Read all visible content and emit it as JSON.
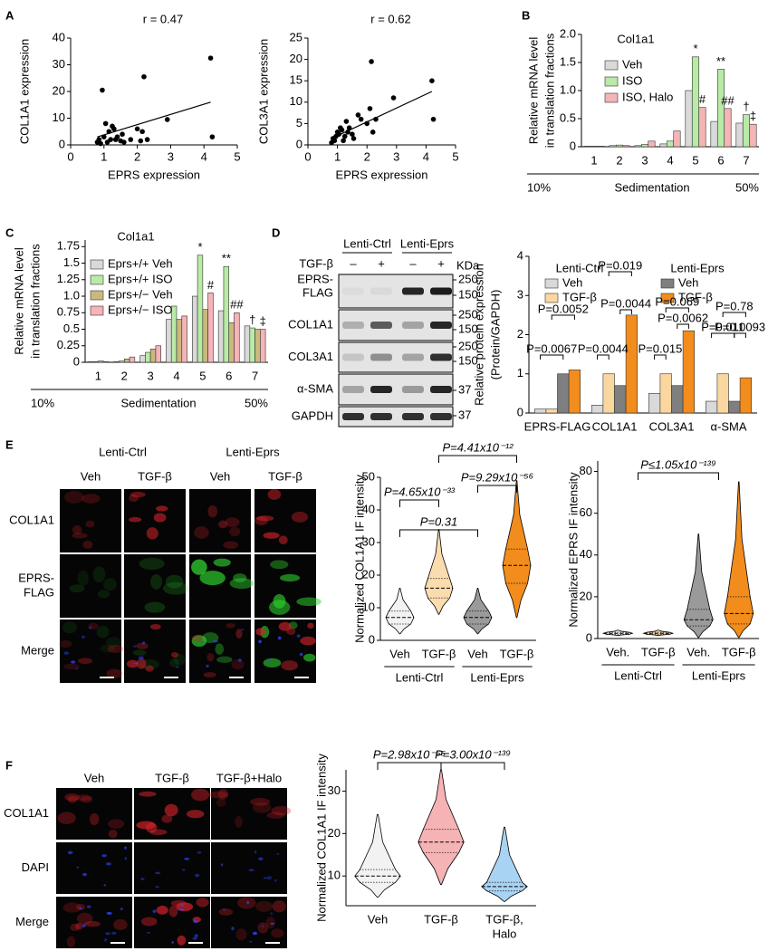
{
  "panel_labels": [
    "A",
    "B",
    "C",
    "D",
    "E",
    "F"
  ],
  "chart_data": [
    {
      "type": "scatter",
      "title": "r = 0.47",
      "xlabel": "EPRS expression",
      "ylabel": "COL1A1 expression",
      "x": [
        0.8,
        0.85,
        0.9,
        0.95,
        1.0,
        1.05,
        1.1,
        1.15,
        1.2,
        1.25,
        1.3,
        1.35,
        1.4,
        1.5,
        1.55,
        1.6,
        1.8,
        2.0,
        2.1,
        2.15,
        2.2,
        2.3,
        2.9,
        4.2,
        4.25
      ],
      "y": [
        1,
        2,
        0.5,
        20.5,
        3,
        8,
        1,
        5,
        2,
        7,
        6,
        2,
        3,
        1.5,
        4,
        1,
        2,
        6,
        1.5,
        5,
        25.5,
        2,
        9.5,
        32.5,
        3
      ],
      "trendline": {
        "x": [
          0.8,
          4.2
        ],
        "y": [
          3,
          16
        ]
      },
      "xlim": [
        0,
        5
      ],
      "ylim": [
        0,
        40
      ],
      "xticks": [
        0,
        1,
        2,
        3,
        4,
        5
      ],
      "yticks": [
        0,
        10,
        20,
        30,
        40
      ],
      "color": "#000000"
    },
    {
      "type": "scatter",
      "title": "r = 0.62",
      "xlabel": "EPRS expression",
      "ylabel": "COL3A1 expression",
      "x": [
        0.8,
        0.85,
        0.9,
        0.95,
        1.0,
        1.05,
        1.1,
        1.15,
        1.2,
        1.25,
        1.3,
        1.35,
        1.4,
        1.5,
        1.55,
        1.7,
        1.8,
        2.0,
        2.1,
        2.15,
        2.2,
        2.3,
        2.9,
        4.2,
        4.25
      ],
      "y": [
        0.5,
        1.5,
        1,
        2,
        3,
        2.5,
        4,
        3.5,
        1,
        2,
        5.5,
        3,
        4,
        2.5,
        1.5,
        7,
        6,
        5,
        8.5,
        19.5,
        3,
        6,
        11,
        15,
        6
      ],
      "trendline": {
        "x": [
          0.8,
          4.2
        ],
        "y": [
          1.5,
          12.5
        ]
      },
      "xlim": [
        0,
        5
      ],
      "ylim": [
        0,
        25
      ],
      "xticks": [
        0,
        1,
        2,
        3,
        4,
        5
      ],
      "yticks": [
        0,
        5,
        10,
        15,
        20,
        25
      ],
      "color": "#000000"
    },
    {
      "type": "bar",
      "title": "Col1a1",
      "ylabel": [
        "Relative mRNA level",
        "in translation fractions"
      ],
      "xlabel": "Sedimentation",
      "x_range_labels": [
        "10%",
        "50%"
      ],
      "categories": [
        "1",
        "2",
        "3",
        "4",
        "5",
        "6",
        "7"
      ],
      "series": [
        {
          "name": "Veh",
          "color": "#d9d9d9",
          "values": [
            0.01,
            0.02,
            0.02,
            0.05,
            1.0,
            0.45,
            0.42
          ]
        },
        {
          "name": "ISO",
          "color": "#b9eaa6",
          "values": [
            0.01,
            0.03,
            0.04,
            0.1,
            1.6,
            1.38,
            0.57
          ]
        },
        {
          "name": "ISO, Halo",
          "color": "#f5b4b6",
          "values": [
            0.01,
            0.02,
            0.1,
            0.28,
            0.7,
            0.68,
            0.4
          ]
        }
      ],
      "annotations": [
        "*",
        "#",
        "**",
        "##",
        "†",
        "‡"
      ],
      "ylim": [
        0,
        2
      ],
      "yticks": [
        0,
        0.5,
        {
          "value": 1,
          "label": "1.0"
        },
        1.5,
        {
          "value": 2,
          "label": "2.0"
        }
      ]
    },
    {
      "type": "bar",
      "title": "Col1a1",
      "ylabel": [
        "Relative mRNA level",
        "in translation fractions"
      ],
      "xlabel": "Sedimentation",
      "x_range_labels": [
        "10%",
        "50%"
      ],
      "categories": [
        "1",
        "2",
        "3",
        "4",
        "5",
        "6",
        "7"
      ],
      "series": [
        {
          "name": "Eprs+/+ Veh",
          "color": "#d9d9d9",
          "values": [
            0.01,
            0.01,
            0.1,
            0.65,
            1.0,
            0.78,
            0.55
          ]
        },
        {
          "name": "Eprs+/+ ISO",
          "color": "#b9eaa6",
          "values": [
            0.01,
            0.02,
            0.15,
            0.85,
            1.62,
            1.45,
            0.52
          ]
        },
        {
          "name": "Eprs+/− Veh",
          "color": "#cbb97c",
          "values": [
            0.02,
            0.05,
            0.2,
            0.65,
            0.8,
            0.6,
            0.5
          ]
        },
        {
          "name": "Eprs+/− ISO",
          "color": "#f5b4b6",
          "values": [
            0.01,
            0.08,
            0.25,
            0.7,
            1.05,
            0.75,
            0.5
          ]
        }
      ],
      "annotations": [
        "*",
        "#",
        "**",
        "##",
        "†",
        "‡"
      ],
      "ylim": [
        0,
        1.85
      ],
      "yticks": [
        0,
        0.25,
        0.5,
        0.75,
        {
          "value": 1,
          "label": "1.0"
        },
        1.25,
        1.5,
        1.75
      ]
    },
    {
      "type": "bar",
      "ylabel": [
        "Relative protein expression",
        "(Protein/GAPDH)"
      ],
      "legend_groups": [
        "Lenti-Ctrl",
        "Lenti-Eprs"
      ],
      "categories": [
        "EPRS-FLAG",
        "COL1A1",
        "COL3A1",
        "α-SMA"
      ],
      "series": [
        {
          "name": "Veh",
          "color": "#d9d9d9",
          "values": [
            0.1,
            0.2,
            0.5,
            0.3
          ]
        },
        {
          "name": "TGF-β",
          "color": "#fbd7a0",
          "values": [
            0.1,
            1.0,
            1.0,
            1.0
          ]
        },
        {
          "name": "Veh",
          "color": "#7f7f7f",
          "values": [
            1.0,
            0.7,
            0.7,
            0.3
          ]
        },
        {
          "name": "TGF-β",
          "color": "#f28c1c",
          "values": [
            1.1,
            2.5,
            2.1,
            0.9
          ]
        }
      ],
      "annotations": [
        "P=0.0067",
        "P=0.0052",
        "P=0.0044",
        "P=0.019",
        "P=0.0044",
        "P=0.015",
        "P=0.069",
        "P=0.0062",
        "P=0.011",
        "P=0.78",
        "P=0.0093"
      ],
      "ylim": [
        0,
        4
      ],
      "yticks": [
        0,
        1,
        2,
        3,
        4
      ]
    },
    {
      "type": "violin",
      "ylabel": "Normalized COL1A1 IF intensity",
      "categories": [
        "Veh",
        "TGF-β",
        "Veh",
        "TGF-β"
      ],
      "groups": [
        "Lenti-Ctrl",
        "Lenti-Eprs"
      ],
      "colors": [
        "#f2f2f2",
        "#fbdcae",
        "#9a9a9a",
        "#f28c1c"
      ],
      "median": [
        7,
        16,
        7,
        23
      ],
      "q1": [
        5,
        13,
        5,
        17.5
      ],
      "q3": [
        9,
        19,
        9,
        28
      ],
      "min": [
        2,
        8,
        2,
        7
      ],
      "max": [
        16,
        34,
        16,
        49
      ],
      "annotations": [
        "P=4.65x10⁻³³",
        "P=0.31",
        "P=9.29x10⁻⁵⁶",
        "P=4.41x10⁻¹²"
      ],
      "ylim": [
        0,
        50
      ],
      "yticks": [
        0,
        10,
        20,
        30,
        40,
        50
      ]
    },
    {
      "type": "violin",
      "ylabel": "Normalized EPRS IF intensity",
      "categories": [
        "Veh.",
        "TGF-β",
        "Veh.",
        "TGF-β"
      ],
      "groups": [
        "Lenti-Ctrl",
        "Lenti-Eprs"
      ],
      "colors": [
        "#f2f2f2",
        "#fbdcae",
        "#9a9a9a",
        "#f28c1c"
      ],
      "median": [
        2.5,
        2.5,
        9,
        12
      ],
      "q1": [
        2,
        2,
        6,
        7
      ],
      "q3": [
        3,
        3,
        14,
        20
      ],
      "min": [
        1.5,
        1.5,
        0.5,
        0.5
      ],
      "max": [
        4,
        4,
        50,
        75
      ],
      "annotations": [
        "P≤1.05x10⁻¹³⁹"
      ],
      "ylim": [
        0,
        85
      ],
      "yticks": [
        0,
        20,
        40,
        60,
        80
      ]
    },
    {
      "type": "violin",
      "ylabel": "Normalized COL1A1 IF intensity",
      "categories": [
        "Veh",
        "TGF-β",
        [
          "TGF-β,",
          "Halo"
        ]
      ],
      "colors": [
        "#f2f2f2",
        "#f6b3b5",
        "#a9d3f2"
      ],
      "median": [
        10,
        18,
        7.5
      ],
      "q1": [
        8.5,
        15.5,
        6.5
      ],
      "q3": [
        11.5,
        21,
        8.5
      ],
      "min": [
        5,
        8,
        4
      ],
      "max": [
        24.5,
        35,
        21.5
      ],
      "annotations": [
        "P=2.98x10⁻⁶⁵",
        "P=3.00x10⁻¹³⁹"
      ],
      "ylim": [
        3,
        35
      ],
      "yticks": [
        10,
        20,
        30
      ]
    }
  ],
  "blot": {
    "groups": [
      "Lenti-Ctrl",
      "Lenti-Eprs"
    ],
    "treatment": "TGF-β",
    "lanes": [
      "–",
      "+",
      "–",
      "+"
    ],
    "kda_label": "KDa",
    "rows": [
      {
        "label": [
          "EPRS-",
          "FLAG"
        ],
        "markers": [
          250,
          150
        ]
      },
      {
        "label": "COL1A1",
        "markers": [
          250,
          150
        ]
      },
      {
        "label": "COL3A1",
        "markers": [
          250,
          150
        ]
      },
      {
        "label": "α-SMA",
        "markers": [
          37
        ]
      },
      {
        "label": "GAPDH",
        "markers": [
          37
        ]
      }
    ]
  },
  "panel_e_images": {
    "groups": [
      "Lenti-Ctrl",
      "Lenti-Eprs"
    ],
    "columns": [
      "Veh",
      "TGF-β",
      "Veh",
      "TGF-β"
    ],
    "rows": [
      "COL1A1",
      [
        "EPRS-",
        "FLAG"
      ],
      "Merge"
    ]
  },
  "panel_f_images": {
    "columns": [
      "Veh",
      "TGF-β",
      "TGF-β+Halo"
    ],
    "rows": [
      "COL1A1",
      "DAPI",
      "Merge"
    ]
  }
}
